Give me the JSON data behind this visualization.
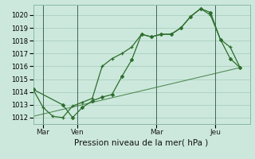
{
  "title": "Pression niveau de la mer( hPa )",
  "bg_color": "#cce8dc",
  "grid_color": "#aacfbf",
  "line_color": "#2d6e2d",
  "xlim": [
    0,
    22
  ],
  "ylim": [
    1011.5,
    1020.8
  ],
  "yticks": [
    1012,
    1013,
    1014,
    1015,
    1016,
    1017,
    1018,
    1019,
    1020
  ],
  "day_labels": [
    "Mar",
    "Ven",
    "Mar",
    "Jeu"
  ],
  "day_positions": [
    1.0,
    4.5,
    12.5,
    18.5
  ],
  "vline_positions": [
    1.0,
    4.5,
    12.5,
    18.5
  ],
  "series1_x": [
    0,
    1,
    2,
    3,
    4,
    5,
    6,
    7,
    8,
    9,
    10,
    11,
    12,
    13,
    14,
    15,
    16,
    17,
    18,
    19,
    20,
    21
  ],
  "series1_y": [
    1014.2,
    1012.8,
    1012.1,
    1012.0,
    1012.9,
    1013.2,
    1013.5,
    1016.0,
    1016.6,
    1017.0,
    1017.5,
    1018.5,
    1018.3,
    1018.5,
    1018.5,
    1019.0,
    1019.9,
    1020.5,
    1020.0,
    1018.1,
    1017.5,
    1015.9
  ],
  "series2_x": [
    0,
    3,
    4,
    5,
    6,
    7,
    8,
    9,
    10,
    11,
    12,
    13,
    14,
    15,
    16,
    17,
    18,
    19,
    20,
    21
  ],
  "series2_y": [
    1014.2,
    1013.0,
    1012.0,
    1012.8,
    1013.3,
    1013.6,
    1013.8,
    1015.2,
    1016.5,
    1018.5,
    1018.3,
    1018.5,
    1018.5,
    1019.0,
    1019.9,
    1020.5,
    1020.2,
    1018.1,
    1016.6,
    1015.9
  ],
  "series3_x": [
    0,
    21
  ],
  "series3_y": [
    1012.1,
    1015.9
  ],
  "ytick_fontsize": 6,
  "xtick_fontsize": 6.5,
  "title_fontsize": 7.5
}
